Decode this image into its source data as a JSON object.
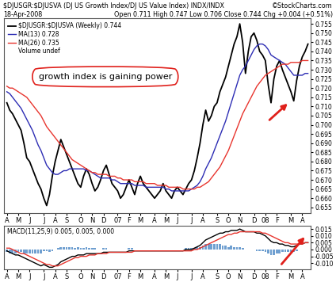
{
  "chart_data": [
    {
      "type": "line",
      "title": "$DJUSGR:$DJUSVA (DJ US Growth Index/DJ US Value Index) INDX/INDX",
      "subtitle": "Open 0.711 High 0.747 Low 0.706 Close 0.744 Chg +0.004 (+0.51%)",
      "date": "18-Apr-2008",
      "credit": "©StockCharts.com",
      "annotation": "growth index is gaining power",
      "legend_note": "Volume undef",
      "categories": [
        "A",
        null,
        null,
        null,
        "M",
        null,
        null,
        null,
        "J",
        null,
        null,
        null,
        null,
        "J",
        null,
        null,
        null,
        "A",
        null,
        null,
        null,
        "S",
        null,
        null,
        null,
        null,
        "O",
        null,
        null,
        null,
        "N",
        null,
        null,
        null,
        "D",
        null,
        null,
        null,
        null,
        "07",
        null,
        null,
        null,
        "F",
        null,
        null,
        null,
        "M",
        null,
        null,
        null,
        null,
        "A",
        null,
        null,
        null,
        "M",
        null,
        null,
        null,
        "J",
        null,
        null,
        null,
        null,
        "J",
        null,
        null,
        null,
        "A",
        null,
        null,
        null,
        null,
        "S",
        null,
        null,
        null,
        "O",
        null,
        null,
        null,
        "N",
        null,
        null,
        null,
        null,
        "D",
        null,
        null,
        null,
        "08",
        null,
        null,
        null,
        "F",
        null,
        null,
        null,
        null,
        "M",
        null,
        null,
        null,
        "A",
        null,
        null
      ],
      "series": [
        {
          "name": "$DJUSGR:$DJUSVA (Weekly) 0.744",
          "color": "#000000",
          "values": [
            0.712,
            0.708,
            0.706,
            0.703,
            0.7,
            0.697,
            0.69,
            0.682,
            0.68,
            0.676,
            0.672,
            0.668,
            0.665,
            0.66,
            0.656,
            0.662,
            0.672,
            0.68,
            0.686,
            0.692,
            0.688,
            0.684,
            0.68,
            0.676,
            0.672,
            0.668,
            0.666,
            0.672,
            0.676,
            0.673,
            0.668,
            0.664,
            0.666,
            0.67,
            0.675,
            0.678,
            0.673,
            0.668,
            0.666,
            0.664,
            0.66,
            0.662,
            0.666,
            0.67,
            0.666,
            0.662,
            0.668,
            0.672,
            0.668,
            0.666,
            0.664,
            0.662,
            0.66,
            0.662,
            0.664,
            0.668,
            0.664,
            0.662,
            0.66,
            0.664,
            0.666,
            0.664,
            0.662,
            0.665,
            0.668,
            0.67,
            0.675,
            0.682,
            0.69,
            0.7,
            0.708,
            0.702,
            0.705,
            0.71,
            0.712,
            0.718,
            0.722,
            0.726,
            0.732,
            0.738,
            0.744,
            0.748,
            0.755,
            0.745,
            0.728,
            0.74,
            0.748,
            0.75,
            0.746,
            0.74,
            0.738,
            0.735,
            0.722,
            0.712,
            0.725,
            0.732,
            0.735,
            0.73,
            0.726,
            0.722,
            0.718,
            0.713,
            0.724,
            0.732,
            0.737,
            0.74,
            0.744
          ]
        },
        {
          "name": "MA(13) 0.728",
          "color": "#2d2db4",
          "values": [
            0.718,
            0.717,
            0.715,
            0.713,
            0.711,
            0.709,
            0.706,
            0.703,
            0.7,
            0.697,
            0.693,
            0.689,
            0.686,
            0.682,
            0.678,
            0.676,
            0.674,
            0.673,
            0.673,
            0.674,
            0.675,
            0.675,
            0.676,
            0.676,
            0.676,
            0.676,
            0.676,
            0.676,
            0.675,
            0.675,
            0.674,
            0.673,
            0.672,
            0.671,
            0.671,
            0.671,
            0.671,
            0.67,
            0.67,
            0.669,
            0.668,
            0.668,
            0.668,
            0.668,
            0.668,
            0.667,
            0.667,
            0.667,
            0.667,
            0.666,
            0.666,
            0.666,
            0.666,
            0.666,
            0.666,
            0.666,
            0.665,
            0.665,
            0.664,
            0.664,
            0.664,
            0.664,
            0.664,
            0.664,
            0.664,
            0.665,
            0.666,
            0.667,
            0.669,
            0.672,
            0.676,
            0.679,
            0.682,
            0.686,
            0.69,
            0.694,
            0.698,
            0.702,
            0.707,
            0.712,
            0.717,
            0.722,
            0.727,
            0.73,
            0.732,
            0.735,
            0.738,
            0.741,
            0.743,
            0.744,
            0.744,
            0.743,
            0.741,
            0.738,
            0.737,
            0.736,
            0.735,
            0.734,
            0.733,
            0.731,
            0.729,
            0.727,
            0.727,
            0.727,
            0.727,
            0.728,
            0.728
          ]
        },
        {
          "name": "MA(26) 0.735",
          "color": "#e8352e",
          "values": [
            0.721,
            0.72,
            0.72,
            0.719,
            0.718,
            0.717,
            0.716,
            0.715,
            0.713,
            0.711,
            0.709,
            0.707,
            0.705,
            0.702,
            0.699,
            0.697,
            0.695,
            0.693,
            0.691,
            0.689,
            0.687,
            0.685,
            0.683,
            0.681,
            0.68,
            0.679,
            0.678,
            0.677,
            0.676,
            0.675,
            0.674,
            0.674,
            0.673,
            0.673,
            0.673,
            0.673,
            0.672,
            0.672,
            0.672,
            0.671,
            0.671,
            0.67,
            0.67,
            0.67,
            0.67,
            0.669,
            0.669,
            0.669,
            0.669,
            0.668,
            0.668,
            0.668,
            0.668,
            0.667,
            0.667,
            0.667,
            0.667,
            0.666,
            0.666,
            0.666,
            0.666,
            0.666,
            0.665,
            0.665,
            0.665,
            0.665,
            0.665,
            0.666,
            0.666,
            0.667,
            0.668,
            0.669,
            0.671,
            0.673,
            0.675,
            0.677,
            0.68,
            0.683,
            0.686,
            0.69,
            0.694,
            0.698,
            0.702,
            0.706,
            0.709,
            0.712,
            0.715,
            0.718,
            0.721,
            0.723,
            0.725,
            0.727,
            0.728,
            0.729,
            0.73,
            0.731,
            0.732,
            0.733,
            0.733,
            0.733,
            0.734,
            0.734,
            0.734,
            0.734,
            0.735,
            0.735,
            0.735
          ]
        }
      ],
      "ylim": [
        0.652,
        0.758
      ],
      "yticks": [
        0.655,
        {
          "value": 0.66,
          "label": "0.660"
        },
        0.665,
        {
          "value": 0.67,
          "label": "0.670"
        },
        0.675,
        {
          "value": 0.68,
          "label": "0.680"
        },
        0.685,
        {
          "value": 0.69,
          "label": "0.690"
        },
        0.695,
        {
          "value": 0.7,
          "label": "0.700"
        },
        0.705,
        {
          "value": 0.71,
          "label": "0.710"
        },
        0.715,
        {
          "value": 0.72,
          "label": "0.720"
        },
        0.725,
        {
          "value": 0.73,
          "label": "0.730"
        },
        0.735,
        {
          "value": 0.74,
          "label": "0.740"
        },
        0.745,
        {
          "value": 0.75,
          "label": "0.750"
        },
        0.755
      ],
      "grid": false,
      "legend": "upper left"
    },
    {
      "type": "line",
      "title": "MACD(11,25,9) 0.005, 0.005, 0.000",
      "categories": [
        "A",
        null,
        null,
        null,
        "M",
        null,
        null,
        null,
        "J",
        null,
        null,
        null,
        null,
        "J",
        null,
        null,
        null,
        "A",
        null,
        null,
        null,
        "S",
        null,
        null,
        null,
        null,
        "O",
        null,
        null,
        null,
        "N",
        null,
        null,
        null,
        "D",
        null,
        null,
        null,
        null,
        "07",
        null,
        null,
        null,
        "F",
        null,
        null,
        null,
        "M",
        null,
        null,
        null,
        null,
        "A",
        null,
        null,
        null,
        "M",
        null,
        null,
        null,
        "J",
        null,
        null,
        null,
        null,
        "J",
        null,
        null,
        null,
        "A",
        null,
        null,
        null,
        null,
        "S",
        null,
        null,
        null,
        "O",
        null,
        null,
        null,
        "N",
        null,
        null,
        null,
        null,
        "D",
        null,
        null,
        null,
        "08",
        null,
        null,
        null,
        "F",
        null,
        null,
        null,
        null,
        "M",
        null,
        null,
        null,
        "A",
        null,
        null
      ],
      "series": [
        {
          "type": "bar",
          "color": "#6f9fd0",
          "values": [
            -0.002,
            -0.003,
            -0.003,
            -0.003,
            -0.002,
            -0.002,
            -0.003,
            -0.003,
            -0.003,
            -0.003,
            -0.003,
            -0.003,
            -0.003,
            -0.001,
            -0.001,
            -0.002,
            -0.001,
            0.0,
            0.001,
            0.002,
            0.002,
            0.002,
            0.002,
            0.002,
            0.001,
            0.002,
            0.001,
            0.001,
            0.002,
            0.001,
            0.001,
            0.001,
            0.0,
            0.0,
            0.001,
            0.001,
            0.0,
            0.0,
            0.0,
            0.0,
            0.0,
            0.0,
            0.0,
            0.001,
            0.001,
            0.0,
            0.0,
            0.0,
            0.0,
            0.0,
            0.0,
            0.0,
            0.0,
            0.0,
            0.0,
            0.0,
            0.0,
            0.0,
            0.0,
            0.0,
            0.0,
            0.0,
            0.0,
            0.001,
            0.001,
            0.001,
            0.001,
            0.002,
            0.002,
            0.003,
            0.004,
            0.004,
            0.004,
            0.004,
            0.004,
            0.004,
            0.003,
            0.003,
            0.002,
            0.003,
            0.002,
            0.002,
            0.002,
            0.001,
            0.0,
            0.0,
            0.0,
            0.0,
            -0.001,
            -0.001,
            -0.001,
            -0.002,
            -0.003,
            -0.004,
            -0.004,
            -0.003,
            -0.003,
            -0.002,
            -0.002,
            -0.002,
            -0.002,
            -0.002,
            -0.001,
            0.0,
            0.0,
            0.0,
            0.0
          ]
        },
        {
          "color": "#000000",
          "values": [
            -0.001,
            -0.002,
            -0.003,
            -0.004,
            -0.004,
            -0.005,
            -0.006,
            -0.007,
            -0.008,
            -0.009,
            -0.01,
            -0.011,
            -0.012,
            -0.011,
            -0.012,
            -0.013,
            -0.013,
            -0.012,
            -0.011,
            -0.009,
            -0.008,
            -0.007,
            -0.006,
            -0.005,
            -0.005,
            -0.004,
            -0.004,
            -0.004,
            -0.003,
            -0.003,
            -0.003,
            -0.003,
            -0.003,
            -0.003,
            -0.002,
            -0.002,
            -0.002,
            -0.002,
            -0.002,
            -0.002,
            -0.002,
            -0.002,
            -0.002,
            -0.001,
            -0.001,
            -0.001,
            -0.001,
            -0.001,
            -0.001,
            -0.001,
            -0.001,
            -0.001,
            -0.001,
            -0.001,
            -0.001,
            -0.001,
            -0.001,
            -0.001,
            -0.001,
            -0.001,
            -0.001,
            -0.001,
            -0.001,
            0.0,
            0.0,
            0.0,
            0.001,
            0.002,
            0.003,
            0.005,
            0.007,
            0.008,
            0.009,
            0.01,
            0.011,
            0.012,
            0.012,
            0.013,
            0.013,
            0.014,
            0.014,
            0.014,
            0.015,
            0.014,
            0.013,
            0.013,
            0.013,
            0.013,
            0.012,
            0.012,
            0.011,
            0.01,
            0.008,
            0.006,
            0.005,
            0.005,
            0.004,
            0.004,
            0.003,
            0.003,
            0.002,
            0.002,
            0.003,
            0.004,
            0.004,
            0.005,
            0.005
          ]
        },
        {
          "color": "#e8352e",
          "values": [
            0.001,
            0.001,
            0.0,
            -0.001,
            -0.002,
            -0.003,
            -0.003,
            -0.004,
            -0.005,
            -0.006,
            -0.007,
            -0.008,
            -0.009,
            -0.01,
            -0.011,
            -0.011,
            -0.012,
            -0.012,
            -0.012,
            -0.011,
            -0.01,
            -0.009,
            -0.008,
            -0.007,
            -0.006,
            -0.006,
            -0.005,
            -0.005,
            -0.005,
            -0.004,
            -0.004,
            -0.004,
            -0.003,
            -0.003,
            -0.003,
            -0.003,
            -0.002,
            -0.002,
            -0.002,
            -0.002,
            -0.002,
            -0.002,
            -0.002,
            -0.002,
            -0.002,
            -0.001,
            -0.001,
            -0.001,
            -0.001,
            -0.001,
            -0.001,
            -0.001,
            -0.001,
            -0.001,
            -0.001,
            -0.001,
            -0.001,
            -0.001,
            -0.001,
            -0.001,
            -0.001,
            -0.001,
            -0.001,
            -0.001,
            -0.001,
            -0.001,
            0.0,
            0.0,
            0.001,
            0.002,
            0.003,
            0.004,
            0.005,
            0.006,
            0.007,
            0.008,
            0.009,
            0.01,
            0.011,
            0.011,
            0.012,
            0.012,
            0.013,
            0.013,
            0.013,
            0.013,
            0.013,
            0.013,
            0.013,
            0.013,
            0.012,
            0.012,
            0.011,
            0.01,
            0.009,
            0.008,
            0.007,
            0.006,
            0.005,
            0.005,
            0.004,
            0.004,
            0.004,
            0.004,
            0.004,
            0.005,
            0.005
          ]
        }
      ],
      "ylim": [
        -0.0145,
        0.0175
      ],
      "yticks": [
        {
          "value": -0.01,
          "label": "-0.010"
        },
        -0.005,
        {
          "value": 0,
          "label": "0.000"
        },
        0.005,
        {
          "value": 0.01,
          "label": "0.010"
        },
        0.015
      ],
      "grid": false
    }
  ]
}
